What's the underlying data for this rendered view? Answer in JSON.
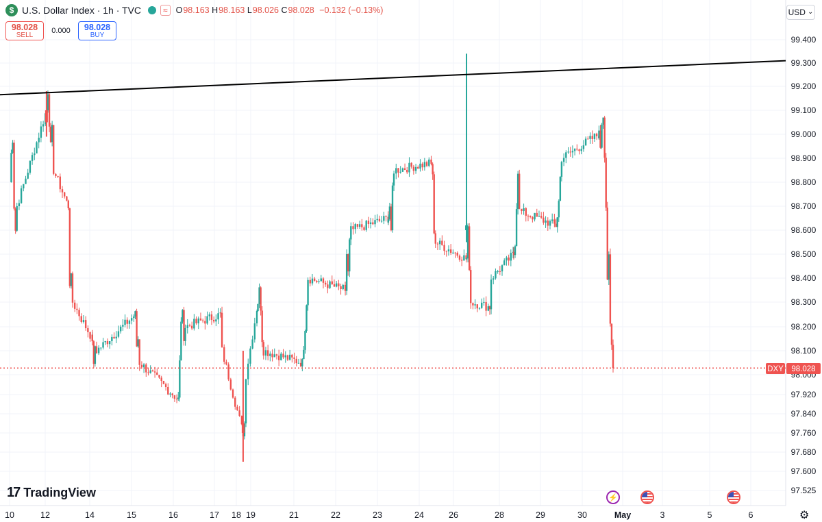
{
  "header": {
    "logo_letter": "$",
    "title": "U.S. Dollar Index · 1h · TVC",
    "wave_symbol": "≈",
    "open_key": "O",
    "open": "98.163",
    "high_key": "H",
    "high": "98.163",
    "low_key": "L",
    "low": "98.026",
    "close_key": "C",
    "close": "98.028",
    "change": "−0.132 (−0.13%)"
  },
  "trade": {
    "sell_price": "98.028",
    "sell_label": "SELL",
    "spread": "0.000",
    "buy_price": "98.028",
    "buy_label": "BUY"
  },
  "currency": {
    "label": "USD",
    "caret": "⌄"
  },
  "brand": {
    "mark": "17",
    "name": "TradingView"
  },
  "settings_icon": "⚙",
  "colors": {
    "up": "#26a69a",
    "down": "#ef5350",
    "trendline": "#000000",
    "price_line": "#ef5350",
    "grid": "#f0f3fa"
  },
  "chart_data": {
    "type": "candlestick",
    "title": "U.S. Dollar Index · 1h · TVC",
    "symbol": "DXY",
    "last_price": 98.028,
    "ylim": [
      97.46,
      99.46
    ],
    "y_ticks": [
      "99.400",
      "99.300",
      "99.200",
      "99.100",
      "99.000",
      "98.900",
      "98.800",
      "98.700",
      "98.600",
      "98.500",
      "98.400",
      "98.300",
      "98.200",
      "98.100",
      "98.000",
      "97.920",
      "97.840",
      "97.760",
      "97.680",
      "97.600",
      "97.525"
    ],
    "x_ticks": [
      "10",
      "12",
      "14",
      "15",
      "16",
      "17",
      "18",
      "19",
      "21",
      "22",
      "23",
      "24",
      "26",
      "28",
      "29",
      "30",
      "May",
      "3",
      "5",
      "6"
    ],
    "grid": true,
    "trendline": {
      "from": {
        "date": "10",
        "price": 99.165
      },
      "to": {
        "date": "6",
        "price": 99.31
      }
    },
    "path": [
      [
        "10",
        98.8
      ],
      [
        "10",
        98.92
      ],
      [
        "10",
        98.98
      ],
      [
        "10",
        98.7
      ],
      [
        "10",
        98.6
      ],
      [
        "10",
        98.7
      ],
      [
        "12",
        99.1
      ],
      [
        "12",
        99.18
      ],
      [
        "12",
        99.05
      ],
      [
        "12",
        98.95
      ],
      [
        "12",
        99.02
      ],
      [
        "12",
        98.85
      ],
      [
        "13",
        98.7
      ],
      [
        "13",
        98.38
      ],
      [
        "13",
        98.4
      ],
      [
        "13",
        98.3
      ],
      [
        "14",
        98.15
      ],
      [
        "14",
        98.03
      ],
      [
        "14",
        98.12
      ],
      [
        "14",
        98.1
      ],
      [
        "15",
        98.25
      ],
      [
        "15",
        98.12
      ],
      [
        "15",
        98.15
      ],
      [
        "15",
        98.05
      ],
      [
        "16",
        97.9
      ],
      [
        "16",
        98.05
      ],
      [
        "16",
        98.23
      ],
      [
        "16",
        98.25
      ],
      [
        "16",
        98.16
      ],
      [
        "16",
        98.2
      ],
      [
        "17",
        98.25
      ],
      [
        "17",
        98.1
      ],
      [
        "18",
        97.76
      ],
      [
        "18",
        97.8
      ],
      [
        "18",
        98.0
      ],
      [
        "19",
        98.3
      ],
      [
        "19",
        98.35
      ],
      [
        "19",
        98.28
      ],
      [
        "19",
        98.15
      ],
      [
        "19",
        98.1
      ],
      [
        "21",
        98.05
      ],
      [
        "21",
        98.12
      ],
      [
        "21",
        98.2
      ],
      [
        "21",
        98.3
      ],
      [
        "21",
        98.4
      ],
      [
        "22",
        98.35
      ],
      [
        "22",
        98.5
      ],
      [
        "22",
        98.42
      ],
      [
        "22",
        98.55
      ],
      [
        "22",
        98.6
      ],
      [
        "23",
        98.65
      ],
      [
        "23",
        98.7
      ],
      [
        "23",
        98.58
      ],
      [
        "23",
        98.78
      ],
      [
        "23",
        98.85
      ],
      [
        "24",
        98.88
      ],
      [
        "24",
        98.82
      ],
      [
        "24",
        98.6
      ],
      [
        "24",
        98.55
      ],
      [
        "26",
        98.48
      ],
      [
        "26",
        98.6
      ],
      [
        "26",
        98.45
      ],
      [
        "26",
        98.3
      ],
      [
        "27",
        98.28
      ],
      [
        "27",
        98.4
      ],
      [
        "28",
        98.5
      ],
      [
        "28",
        98.55
      ],
      [
        "28",
        98.7
      ],
      [
        "28",
        98.85
      ],
      [
        "28",
        98.68
      ],
      [
        "29",
        98.62
      ],
      [
        "29",
        98.66
      ],
      [
        "29",
        98.72
      ],
      [
        "29",
        98.82
      ],
      [
        "29",
        98.9
      ],
      [
        "30",
        99.0
      ],
      [
        "30",
        98.95
      ],
      [
        "30",
        99.05
      ],
      [
        "30",
        99.08
      ],
      [
        "30",
        98.92
      ],
      [
        "30",
        98.7
      ],
      [
        "30",
        98.4
      ],
      [
        "30",
        98.48
      ],
      [
        "30",
        98.2
      ],
      [
        "30",
        98.12
      ],
      [
        "30",
        98.028
      ]
    ],
    "spikes": [
      {
        "date": "26",
        "open": 98.6,
        "high": 99.34,
        "low": 98.55,
        "close": 98.62
      },
      {
        "date": "18",
        "open": 97.8,
        "high": 98.1,
        "low": 97.64,
        "close": 97.76
      },
      {
        "date": "12",
        "open": 99.1,
        "high": 99.18,
        "low": 98.99,
        "close": 99.05
      }
    ]
  }
}
